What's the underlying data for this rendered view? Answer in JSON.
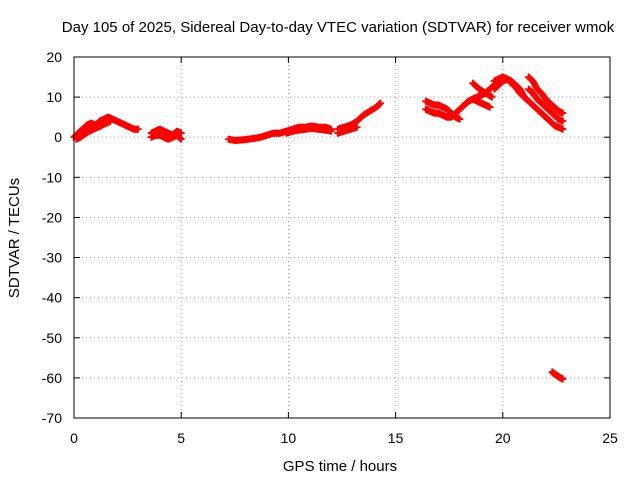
{
  "chart_data": {
    "type": "scatter",
    "title": "Day 105 of 2025, Sidereal Day-to-day VTEC variation (SDTVAR) for receiver wmok",
    "xlabel": "GPS time / hours",
    "ylabel": "SDTVAR / TECUs",
    "xlim": [
      0,
      25
    ],
    "ylim": [
      -70,
      20
    ],
    "xticks": [
      0,
      5,
      10,
      15,
      20,
      25
    ],
    "yticks": [
      -70,
      -60,
      -50,
      -40,
      -30,
      -20,
      -10,
      0,
      10,
      20
    ],
    "grid": true,
    "marker": "plus",
    "color": "#ff0000",
    "series": [
      {
        "name": "arc-a",
        "x": [
          0.0,
          0.2,
          0.4,
          0.6,
          0.8,
          1.0,
          1.2,
          1.4,
          1.6,
          1.8,
          2.0,
          2.2,
          2.4,
          2.6,
          2.8,
          3.0
        ],
        "y": [
          0.0,
          1.0,
          2.0,
          3.0,
          3.5,
          3.0,
          4.0,
          4.5,
          5.0,
          4.5,
          4.0,
          3.5,
          3.0,
          2.5,
          2.0,
          2.0
        ]
      },
      {
        "name": "arc-b",
        "x": [
          0.1,
          0.3,
          0.5,
          0.7,
          0.9,
          1.1,
          1.3,
          1.5,
          1.7
        ],
        "y": [
          -0.5,
          0.0,
          0.8,
          1.5,
          2.0,
          2.5,
          3.0,
          3.5,
          4.0
        ]
      },
      {
        "name": "arc-c",
        "x": [
          3.6,
          3.8,
          4.0,
          4.2,
          4.4,
          4.6,
          4.8,
          5.0
        ],
        "y": [
          1.0,
          1.5,
          2.0,
          1.5,
          1.0,
          0.5,
          1.5,
          1.0
        ]
      },
      {
        "name": "arc-d",
        "x": [
          3.6,
          3.8,
          4.0,
          4.2,
          4.4,
          4.6,
          4.8,
          5.0
        ],
        "y": [
          0.0,
          0.5,
          0.5,
          0.0,
          -0.5,
          0.0,
          0.5,
          -0.5
        ]
      },
      {
        "name": "arc-e",
        "x": [
          7.2,
          7.5,
          7.8,
          8.1,
          8.4,
          8.7,
          9.0,
          9.3,
          9.6,
          9.9,
          10.2,
          10.5,
          10.8,
          11.1,
          11.4,
          11.7,
          12.0
        ],
        "y": [
          -0.5,
          -0.8,
          -0.7,
          -0.5,
          -0.3,
          0.0,
          0.5,
          1.0,
          1.0,
          1.5,
          2.0,
          2.5,
          2.5,
          2.8,
          2.5,
          2.5,
          2.0
        ]
      },
      {
        "name": "arc-f",
        "x": [
          9.9,
          10.2,
          10.5,
          10.8,
          11.1,
          11.4,
          11.7,
          12.0
        ],
        "y": [
          1.0,
          1.5,
          1.8,
          2.0,
          2.2,
          2.0,
          1.8,
          1.5
        ]
      },
      {
        "name": "arc-g",
        "x": [
          12.3,
          12.6,
          12.9,
          13.2,
          13.5,
          13.8,
          14.1,
          14.3
        ],
        "y": [
          2.0,
          2.5,
          3.0,
          4.0,
          5.5,
          6.5,
          7.5,
          8.5
        ]
      },
      {
        "name": "arc-h",
        "x": [
          12.3,
          12.6,
          12.9,
          13.2
        ],
        "y": [
          1.0,
          1.5,
          2.0,
          2.5
        ]
      },
      {
        "name": "arc-i",
        "x": [
          16.4,
          16.6,
          16.8,
          17.0,
          17.2,
          17.4,
          17.6,
          17.8,
          18.0,
          18.2,
          18.4,
          18.6,
          18.8,
          19.0,
          19.2,
          19.4,
          19.6,
          19.8,
          20.0
        ],
        "y": [
          7.0,
          6.5,
          6.0,
          6.0,
          5.5,
          5.0,
          5.0,
          6.0,
          7.0,
          8.0,
          9.0,
          9.5,
          10.0,
          10.5,
          11.0,
          12.0,
          13.0,
          13.5,
          14.0
        ]
      },
      {
        "name": "arc-j",
        "x": [
          16.4,
          16.6,
          16.8,
          17.0,
          17.2,
          17.4,
          17.6,
          17.8,
          18.0
        ],
        "y": [
          9.0,
          8.5,
          8.0,
          8.0,
          7.5,
          7.0,
          6.0,
          5.0,
          4.5
        ]
      },
      {
        "name": "arc-k",
        "x": [
          18.6,
          18.8,
          19.0,
          19.2,
          19.4
        ],
        "y": [
          9.5,
          9.0,
          8.5,
          8.0,
          7.5
        ]
      },
      {
        "name": "arc-l",
        "x": [
          18.6,
          18.9,
          19.2,
          19.5
        ],
        "y": [
          13.5,
          12.0,
          11.0,
          10.0
        ]
      },
      {
        "name": "arc-m",
        "x": [
          19.6,
          19.8,
          20.0,
          20.2,
          20.4,
          20.6,
          20.8,
          21.0,
          21.2,
          21.4,
          21.6,
          21.8,
          22.0,
          22.2,
          22.4,
          22.6,
          22.8
        ],
        "y": [
          12.0,
          13.0,
          14.0,
          14.5,
          14.0,
          13.0,
          12.0,
          10.0,
          9.0,
          8.0,
          7.0,
          6.0,
          5.0,
          4.0,
          3.0,
          2.5,
          2.0
        ]
      },
      {
        "name": "arc-n",
        "x": [
          19.6,
          19.8,
          20.0,
          20.2,
          20.4,
          20.6,
          20.8,
          21.0
        ],
        "y": [
          14.0,
          14.5,
          15.0,
          14.5,
          13.5,
          12.5,
          11.0,
          10.0
        ]
      },
      {
        "name": "arc-o",
        "x": [
          21.2,
          21.4,
          21.6,
          21.8,
          22.0,
          22.2,
          22.4,
          22.6,
          22.8
        ],
        "y": [
          15.0,
          14.0,
          12.0,
          11.0,
          9.5,
          8.5,
          7.5,
          6.5,
          6.0
        ]
      },
      {
        "name": "arc-p",
        "x": [
          21.2,
          21.4,
          21.6,
          21.8,
          22.0,
          22.2,
          22.4,
          22.6,
          22.8
        ],
        "y": [
          12.0,
          11.0,
          9.5,
          8.5,
          7.5,
          6.5,
          5.5,
          4.5,
          4.0
        ]
      },
      {
        "name": "arc-q",
        "x": [
          22.3,
          22.4,
          22.5,
          22.6,
          22.7,
          22.8
        ],
        "y": [
          -58.5,
          -59.0,
          -59.3,
          -59.7,
          -60.0,
          -60.3
        ]
      }
    ]
  }
}
